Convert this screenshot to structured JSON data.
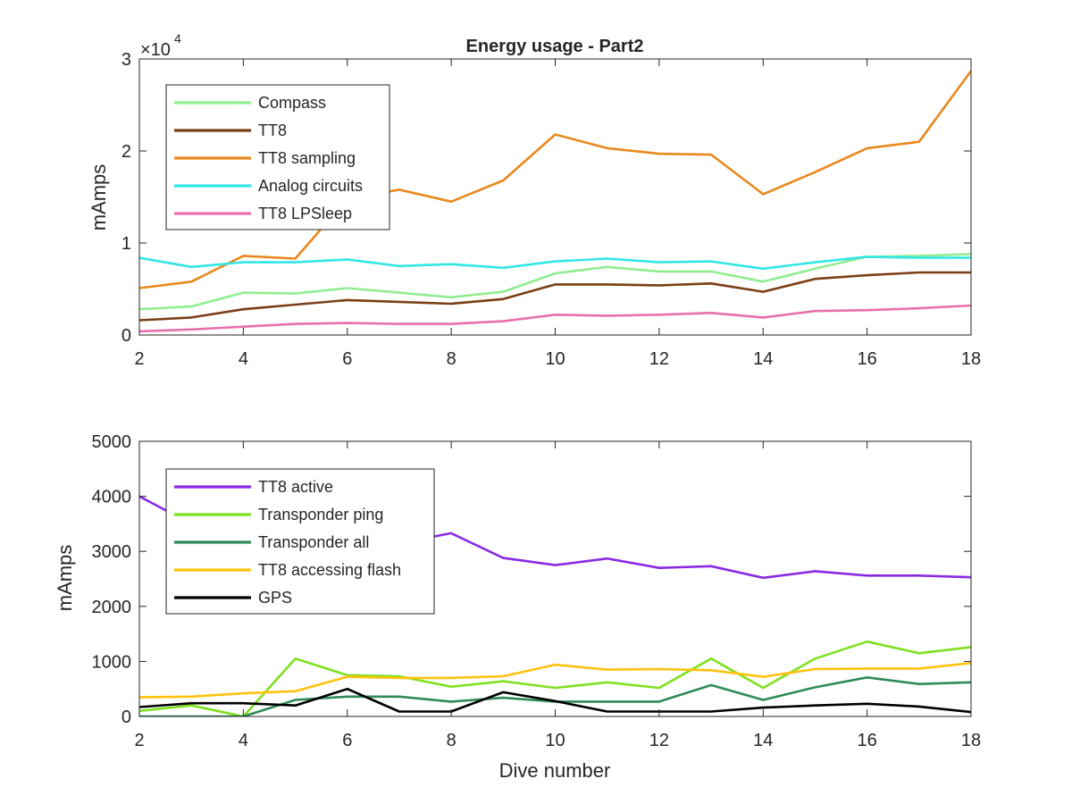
{
  "chart_data": [
    {
      "type": "line",
      "title": "Energy usage - Part2",
      "xlabel": "",
      "ylabel": "mAmps",
      "exponent_label": "×10",
      "exponent_power": "4",
      "xlim": [
        2,
        18
      ],
      "ylim": [
        0,
        30000
      ],
      "xticks": [
        2,
        4,
        6,
        8,
        10,
        12,
        14,
        16,
        18
      ],
      "yticks": [
        0,
        10000,
        20000,
        30000
      ],
      "ytick_labels": [
        "0",
        "1",
        "2",
        "3"
      ],
      "grid": false,
      "legend_position": "top-left",
      "x": [
        2,
        3,
        4,
        5,
        6,
        7,
        8,
        9,
        10,
        11,
        12,
        13,
        14,
        15,
        16,
        17,
        18
      ],
      "series": [
        {
          "name": "Compass",
          "color": "#90ee90",
          "values": [
            2800,
            3100,
            4600,
            4500,
            5100,
            4600,
            4100,
            4700,
            6700,
            7400,
            6900,
            6900,
            5800,
            7200,
            8500,
            8600,
            8800
          ]
        },
        {
          "name": "TT8",
          "color": "#7a3f15",
          "values": [
            1600,
            1900,
            2800,
            3300,
            3800,
            3600,
            3400,
            3900,
            5500,
            5500,
            5400,
            5600,
            4700,
            6100,
            6500,
            6800,
            6800
          ]
        },
        {
          "name": "TT8 sampling",
          "color": "#e8891e",
          "values": [
            5100,
            5800,
            8600,
            8300,
            14800,
            15800,
            14500,
            16800,
            21800,
            20300,
            19700,
            19600,
            15300,
            17700,
            20300,
            21000,
            28700
          ]
        },
        {
          "name": "Analog circuits",
          "color": "#33e6e6",
          "values": [
            8400,
            7400,
            7900,
            7900,
            8200,
            7500,
            7700,
            7300,
            8000,
            8300,
            7900,
            8000,
            7200,
            7900,
            8500,
            8400,
            8400
          ]
        },
        {
          "name": "TT8 LPSleep",
          "color": "#e86fae",
          "values": [
            400,
            600,
            900,
            1200,
            1300,
            1200,
            1200,
            1500,
            2200,
            2100,
            2200,
            2400,
            1900,
            2600,
            2700,
            2900,
            3200
          ]
        }
      ]
    },
    {
      "type": "line",
      "title": "",
      "xlabel": "Dive number",
      "ylabel": "mAmps",
      "xlim": [
        2,
        18
      ],
      "ylim": [
        0,
        5000
      ],
      "xticks": [
        2,
        4,
        6,
        8,
        10,
        12,
        14,
        16,
        18
      ],
      "yticks": [
        0,
        1000,
        2000,
        3000,
        4000,
        5000
      ],
      "ytick_labels": [
        "0",
        "1000",
        "2000",
        "3000",
        "4000",
        "5000"
      ],
      "grid": false,
      "legend_position": "top-left",
      "x": [
        2,
        3,
        4,
        5,
        6,
        7,
        8,
        9,
        10,
        11,
        12,
        13,
        14,
        15,
        16,
        17,
        18
      ],
      "series": [
        {
          "name": "TT8 active",
          "color": "#8a2be2",
          "values": [
            4000,
            3500,
            3300,
            3300,
            3300,
            3150,
            3330,
            2880,
            2750,
            2870,
            2700,
            2730,
            2520,
            2640,
            2560,
            2560,
            2530
          ]
        },
        {
          "name": "Transponder ping",
          "color": "#7fe01f",
          "values": [
            100,
            200,
            0,
            1050,
            750,
            730,
            540,
            640,
            520,
            620,
            520,
            1050,
            520,
            1050,
            1360,
            1150,
            1260
          ]
        },
        {
          "name": "Transponder all",
          "color": "#2e8b57",
          "values": [
            0,
            0,
            0,
            300,
            360,
            360,
            270,
            340,
            270,
            270,
            270,
            570,
            300,
            530,
            710,
            590,
            620
          ]
        },
        {
          "name": "TT8 accessing flash",
          "color": "#ffc20e",
          "values": [
            350,
            360,
            420,
            460,
            720,
            700,
            700,
            730,
            940,
            850,
            860,
            840,
            720,
            860,
            870,
            870,
            970
          ]
        },
        {
          "name": "GPS",
          "color": "#000000",
          "values": [
            170,
            240,
            240,
            200,
            500,
            90,
            90,
            440,
            280,
            90,
            90,
            90,
            160,
            200,
            230,
            180,
            80
          ]
        }
      ]
    }
  ]
}
